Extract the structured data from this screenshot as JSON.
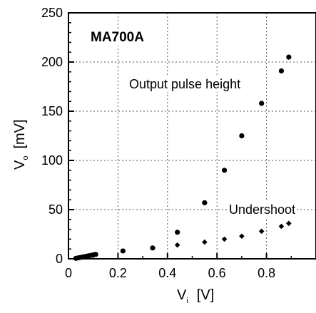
{
  "chart_data": {
    "type": "scatter",
    "xlim": [
      0,
      1.0
    ],
    "ylim": [
      0,
      250
    ],
    "x_ticks": [
      0,
      0.2,
      0.4,
      0.6,
      0.8
    ],
    "x_tick_labels": [
      "0",
      "0.2",
      "0.4",
      "0.6",
      "0.8"
    ],
    "y_ticks": [
      0,
      50,
      100,
      150,
      200,
      250
    ],
    "y_tick_labels": [
      "0",
      "50",
      "100",
      "150",
      "200",
      "250"
    ],
    "xlabel": {
      "main": "V",
      "sub": "i",
      "unit": "[V]"
    },
    "ylabel": {
      "main": "V",
      "sub": "o",
      "unit": "[mV]"
    },
    "grid": true,
    "annotations": {
      "model": "MA700A",
      "pulse": "Output pulse height",
      "undershoot": "Undershoot"
    },
    "series": [
      {
        "marker": "circle",
        "x": [
          0.03,
          0.04,
          0.05,
          0.06,
          0.07,
          0.08,
          0.09,
          0.1,
          0.11,
          0.22,
          0.34,
          0.44,
          0.55,
          0.63,
          0.7,
          0.78,
          0.86,
          0.89
        ],
        "y": [
          0.5,
          1,
          1.5,
          2,
          2.5,
          3,
          3.5,
          4,
          4.5,
          8,
          11,
          27,
          57,
          90,
          125,
          158,
          191,
          205
        ]
      },
      {
        "marker": "diamond",
        "x": [
          0.44,
          0.55,
          0.63,
          0.7,
          0.78,
          0.86,
          0.89
        ],
        "y": [
          14,
          17,
          20,
          23,
          28,
          33,
          36
        ]
      }
    ],
    "colors": {
      "axis": "#000000",
      "grid": "#555555",
      "marker": "#000000"
    }
  }
}
